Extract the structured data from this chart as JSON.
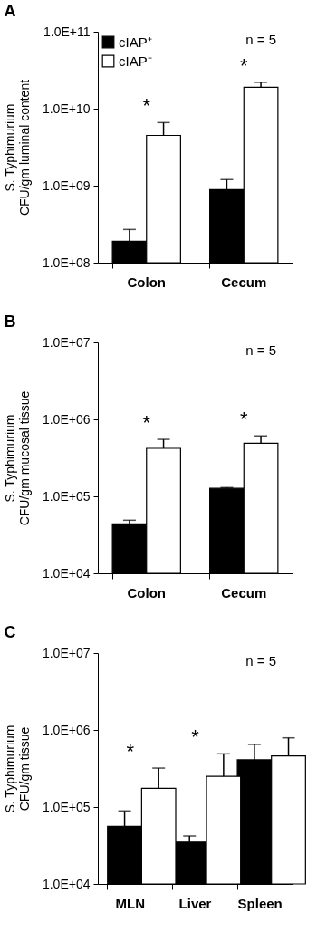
{
  "chart_data": [
    {
      "type": "bar",
      "title": "A",
      "ylabel": "S. Typhimurium\nCFU/gm luminal content",
      "categories": [
        "Colon",
        "Cecum"
      ],
      "log": true,
      "legend": "top left",
      "grid": false,
      "ylim": [
        100000000,
        100000000000
      ],
      "yticks": [
        {
          "value": 100000000,
          "label": "1.0E+08"
        },
        {
          "value": 1000000000,
          "label": "1.0E+09"
        },
        {
          "value": 10000000000,
          "label": "1.0E+10"
        },
        {
          "value": 100000000000,
          "label": "1.0E+11"
        }
      ],
      "series": [
        {
          "name": "cIAP⁺",
          "color": "#000000",
          "values": [
            190000000,
            890000000
          ],
          "errors": [
            [
              190000000,
              270000000
            ],
            [
              890000000,
              1200000000
            ]
          ]
        },
        {
          "name": "cIAP⁻",
          "color": "#ffffff",
          "values": [
            4500000000,
            19000000000
          ],
          "errors": [
            [
              4500000000,
              6600000000
            ],
            [
              19000000000,
              22000000000
            ]
          ]
        }
      ],
      "annotations": [
        "n = 5",
        "*",
        "*"
      ]
    },
    {
      "type": "bar",
      "title": "B",
      "ylabel": "S. Typhimurium\nCFU/gm mucosal tissue",
      "categories": [
        "Colon",
        "Cecum"
      ],
      "log": true,
      "legend": "top left",
      "grid": false,
      "ylim": [
        10000,
        10000000
      ],
      "yticks": [
        {
          "value": 10000,
          "label": "1.0E+04"
        },
        {
          "value": 100000,
          "label": "1.0E+05"
        },
        {
          "value": 1000000,
          "label": "1.0E+06"
        },
        {
          "value": 10000000,
          "label": "1.0E+07"
        }
      ],
      "series": [
        {
          "name": "cIAP⁺",
          "color": "#000000",
          "values": [
            44000,
            127000
          ],
          "errors": [
            [
              44000,
              49000
            ],
            [
              127000,
              130000
            ]
          ]
        },
        {
          "name": "cIAP⁻",
          "color": "#ffffff",
          "values": [
            420000,
            490000
          ],
          "errors": [
            [
              420000,
              550000
            ],
            [
              490000,
              610000
            ]
          ]
        }
      ],
      "annotations": [
        "n = 5",
        "*",
        "*"
      ]
    },
    {
      "type": "bar",
      "title": "C",
      "ylabel": "S. Typhimurium\nCFU/gm tissue",
      "categories": [
        "MLN",
        "Liver",
        "Spleen"
      ],
      "log": true,
      "legend": "top left",
      "grid": false,
      "ylim": [
        10000,
        10000000
      ],
      "yticks": [
        {
          "value": 10000,
          "label": "1.0E+04"
        },
        {
          "value": 100000,
          "label": "1.0E+05"
        },
        {
          "value": 1000000,
          "label": "1.0E+06"
        },
        {
          "value": 10000000,
          "label": "1.0E+07"
        }
      ],
      "series": [
        {
          "name": "cIAP⁺",
          "color": "#000000",
          "values": [
            56000,
            35000,
            410000
          ],
          "errors": [
            [
              56000,
              89000
            ],
            [
              35000,
              42000
            ],
            [
              410000,
              650000
            ]
          ]
        },
        {
          "name": "cIAP⁻",
          "color": "#ffffff",
          "values": [
            175000,
            250000,
            460000
          ],
          "errors": [
            [
              175000,
              320000
            ],
            [
              250000,
              490000
            ],
            [
              460000,
              790000
            ]
          ]
        }
      ],
      "annotations": [
        "n = 5",
        "*",
        "*"
      ]
    }
  ]
}
